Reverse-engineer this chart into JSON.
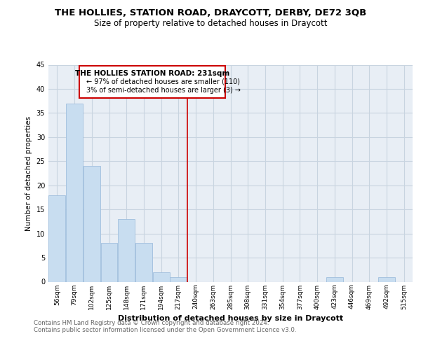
{
  "title": "THE HOLLIES, STATION ROAD, DRAYCOTT, DERBY, DE72 3QB",
  "subtitle": "Size of property relative to detached houses in Draycott",
  "xlabel": "Distribution of detached houses by size in Draycott",
  "ylabel": "Number of detached properties",
  "footer_line1": "Contains HM Land Registry data © Crown copyright and database right 2024.",
  "footer_line2": "Contains public sector information licensed under the Open Government Licence v3.0.",
  "bin_labels": [
    "56sqm",
    "79sqm",
    "102sqm",
    "125sqm",
    "148sqm",
    "171sqm",
    "194sqm",
    "217sqm",
    "240sqm",
    "263sqm",
    "285sqm",
    "308sqm",
    "331sqm",
    "354sqm",
    "377sqm",
    "400sqm",
    "423sqm",
    "446sqm",
    "469sqm",
    "492sqm",
    "515sqm"
  ],
  "bar_values": [
    18,
    37,
    24,
    8,
    13,
    8,
    2,
    1,
    0,
    0,
    0,
    0,
    0,
    0,
    0,
    0,
    1,
    0,
    0,
    1,
    0
  ],
  "bar_color": "#c8ddf0",
  "bar_edge_color": "#a0bedd",
  "ylim": [
    0,
    45
  ],
  "yticks": [
    0,
    5,
    10,
    15,
    20,
    25,
    30,
    35,
    40,
    45
  ],
  "vline_x": 7.5,
  "vline_color": "#cc0000",
  "annotation_title": "THE HOLLIES STATION ROAD: 231sqm",
  "annotation_line1": "← 97% of detached houses are smaller (110)",
  "annotation_line2": "3% of semi-detached houses are larger (3) →",
  "annotation_border_color": "#cc0000",
  "background_color": "#ffffff",
  "plot_background": "#e8eef5",
  "grid_color": "#c8d4e0",
  "title_fontsize": 9.5,
  "subtitle_fontsize": 8.5,
  "footer_color": "#666666"
}
